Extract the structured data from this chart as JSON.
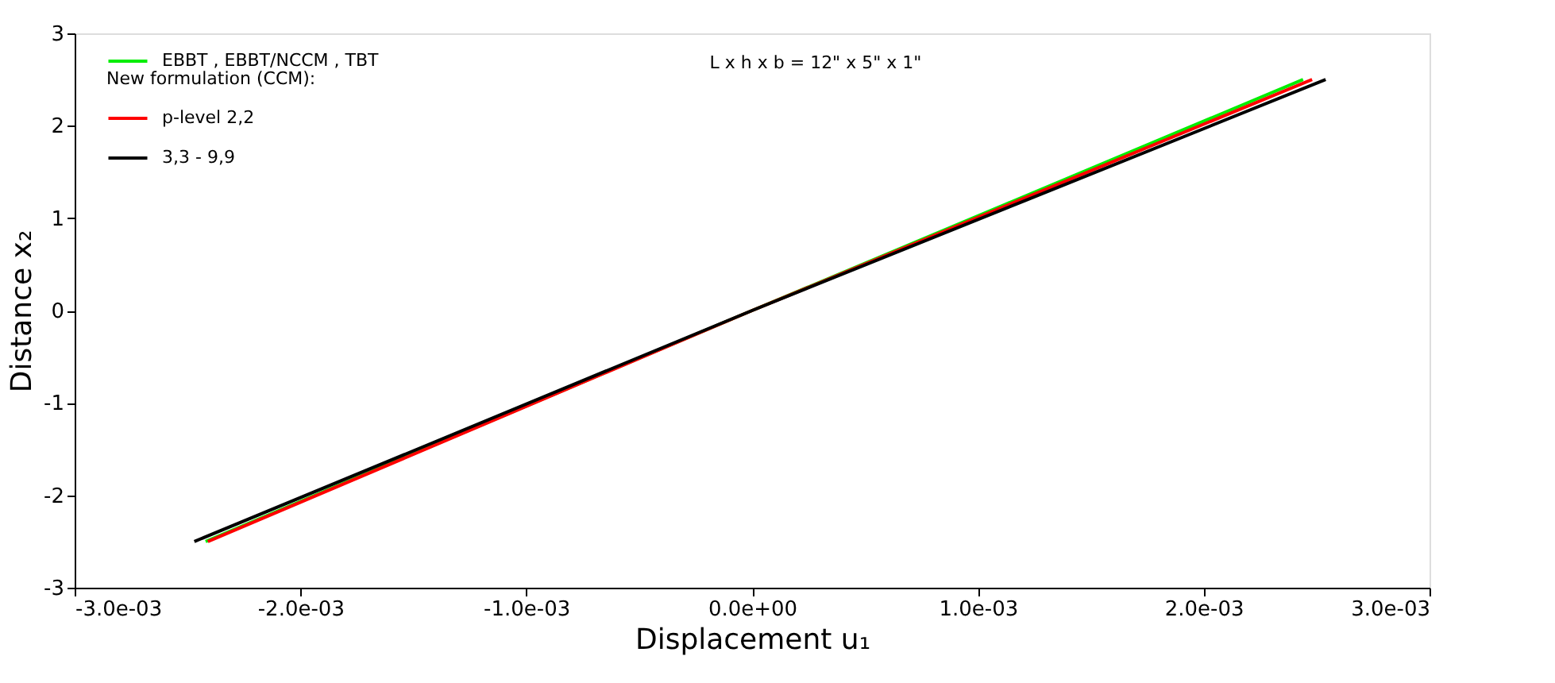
{
  "chart_data": {
    "type": "line",
    "xlabel": "Displacement  u₁",
    "ylabel": "Distance  x₂",
    "annotations": [
      "New formulation (CCM):",
      "L x h x b = 12\" x 5\" x 1\""
    ],
    "series": [
      {
        "name": "EBBT , EBBT/NCCM , TBT",
        "color": "#00ee00",
        "x": [
          -0.00242,
          0,
          0.00244
        ],
        "values": [
          -2.5,
          0,
          2.5
        ]
      },
      {
        "name": "p-level 2,2",
        "color": "#ff0000",
        "x": [
          -0.00241,
          0,
          0.00248
        ],
        "values": [
          -2.5,
          0,
          2.5
        ]
      },
      {
        "name": "3,3 - 9,9",
        "color": "#000000",
        "x": [
          -0.00247,
          0,
          0.00254
        ],
        "values": [
          -2.5,
          0,
          2.5
        ]
      }
    ],
    "xlim": [
      -0.003,
      0.003
    ],
    "ylim": [
      -3,
      3
    ],
    "xticks": [
      {
        "value": -0.003,
        "label": "-3.0e-03"
      },
      {
        "value": -0.002,
        "label": "-2.0e-03"
      },
      {
        "value": -0.001,
        "label": "-1.0e-03"
      },
      {
        "value": 0,
        "label": "0.0e+00"
      },
      {
        "value": 0.001,
        "label": "1.0e-03"
      },
      {
        "value": 0.002,
        "label": "2.0e-03"
      },
      {
        "value": 0.003,
        "label": "3.0e-03"
      }
    ],
    "yticks": [
      -3,
      -2,
      -1,
      0,
      1,
      2,
      3
    ],
    "legend": "top left",
    "grid": false,
    "line_style": "solid",
    "marker": "none"
  }
}
